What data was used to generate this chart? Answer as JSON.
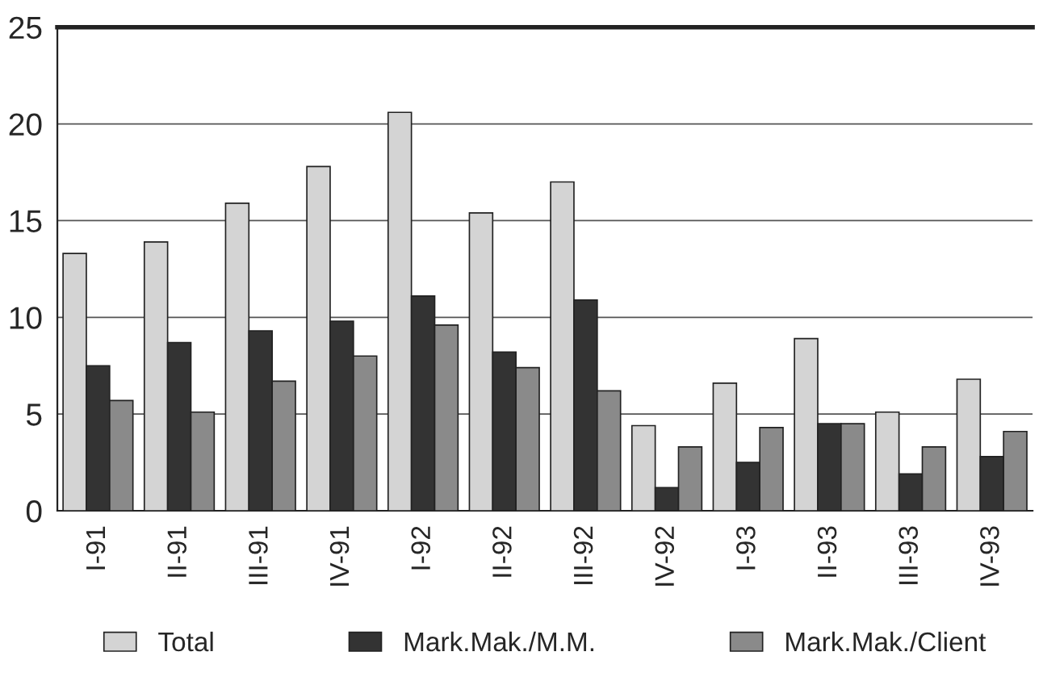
{
  "chart_data": {
    "type": "bar",
    "categories": [
      "I-91",
      "II-91",
      "III-91",
      "IV-91",
      "I-92",
      "II-92",
      "III-92",
      "IV-92",
      "I-93",
      "II-93",
      "III-93",
      "IV-93"
    ],
    "series": [
      {
        "name": "Total",
        "color": "#d4d4d4",
        "values": [
          13.3,
          13.9,
          15.9,
          17.8,
          20.6,
          15.4,
          17.0,
          4.4,
          6.6,
          8.9,
          5.1,
          6.8
        ]
      },
      {
        "name": "Mark.Mak./M.M.",
        "color": "#333333",
        "values": [
          7.5,
          8.7,
          9.3,
          9.8,
          11.1,
          8.2,
          10.9,
          1.2,
          2.5,
          4.5,
          1.9,
          2.8
        ]
      },
      {
        "name": "Mark.Mak./Client",
        "color": "#8a8a8a",
        "values": [
          5.7,
          5.1,
          6.7,
          8.0,
          9.6,
          7.4,
          6.2,
          3.3,
          4.3,
          4.5,
          3.3,
          4.1
        ]
      }
    ],
    "ylim": [
      0,
      25
    ],
    "yticks": [
      0,
      5,
      10,
      15,
      20,
      25
    ],
    "grid": "y",
    "legend": "bottom"
  }
}
